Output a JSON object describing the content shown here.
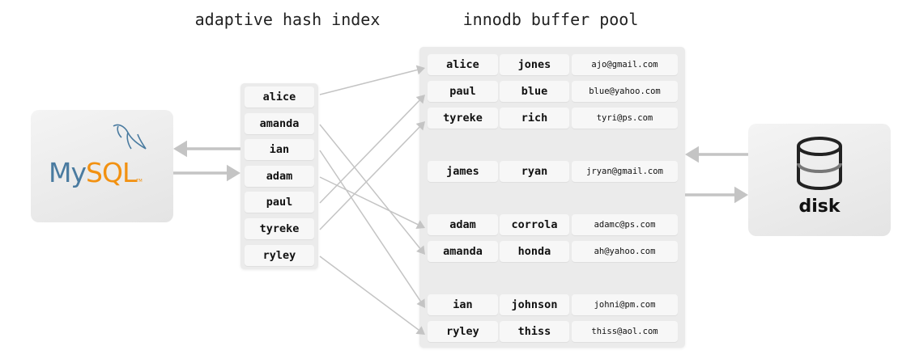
{
  "titles": {
    "hash_index": "adaptive hash index",
    "buffer_pool": "innodb buffer pool"
  },
  "mysql": {
    "logo_text_my": "My",
    "logo_text_sql": "SQL",
    "logo_tm": "TM",
    "colors": {
      "my": "#4a7ba0",
      "sql": "#f29111"
    }
  },
  "disk": {
    "label": "disk",
    "icon": "database-cylinder-icon"
  },
  "hash_index": [
    "alice",
    "amanda",
    "ian",
    "adam",
    "paul",
    "tyreke",
    "ryley"
  ],
  "buffer_pool": [
    {
      "first": "alice",
      "last": "jones",
      "email": "ajo@gmail.com"
    },
    {
      "first": "paul",
      "last": "blue",
      "email": "blue@yahoo.com"
    },
    {
      "first": "tyreke",
      "last": "rich",
      "email": "tyri@ps.com"
    },
    {
      "first": "james",
      "last": "ryan",
      "email": "jryan@gmail.com"
    },
    {
      "first": "adam",
      "last": "corrola",
      "email": "adamc@ps.com"
    },
    {
      "first": "amanda",
      "last": "honda",
      "email": "ah@yahoo.com"
    },
    {
      "first": "ian",
      "last": "johnson",
      "email": "johni@pm.com"
    },
    {
      "first": "ryley",
      "last": "thiss",
      "email": "thiss@aol.com"
    }
  ],
  "mappings": {
    "alice": 0,
    "amanda": 5,
    "ian": 6,
    "adam": 4,
    "paul": 1,
    "tyreke": 2,
    "ryley": 7
  }
}
